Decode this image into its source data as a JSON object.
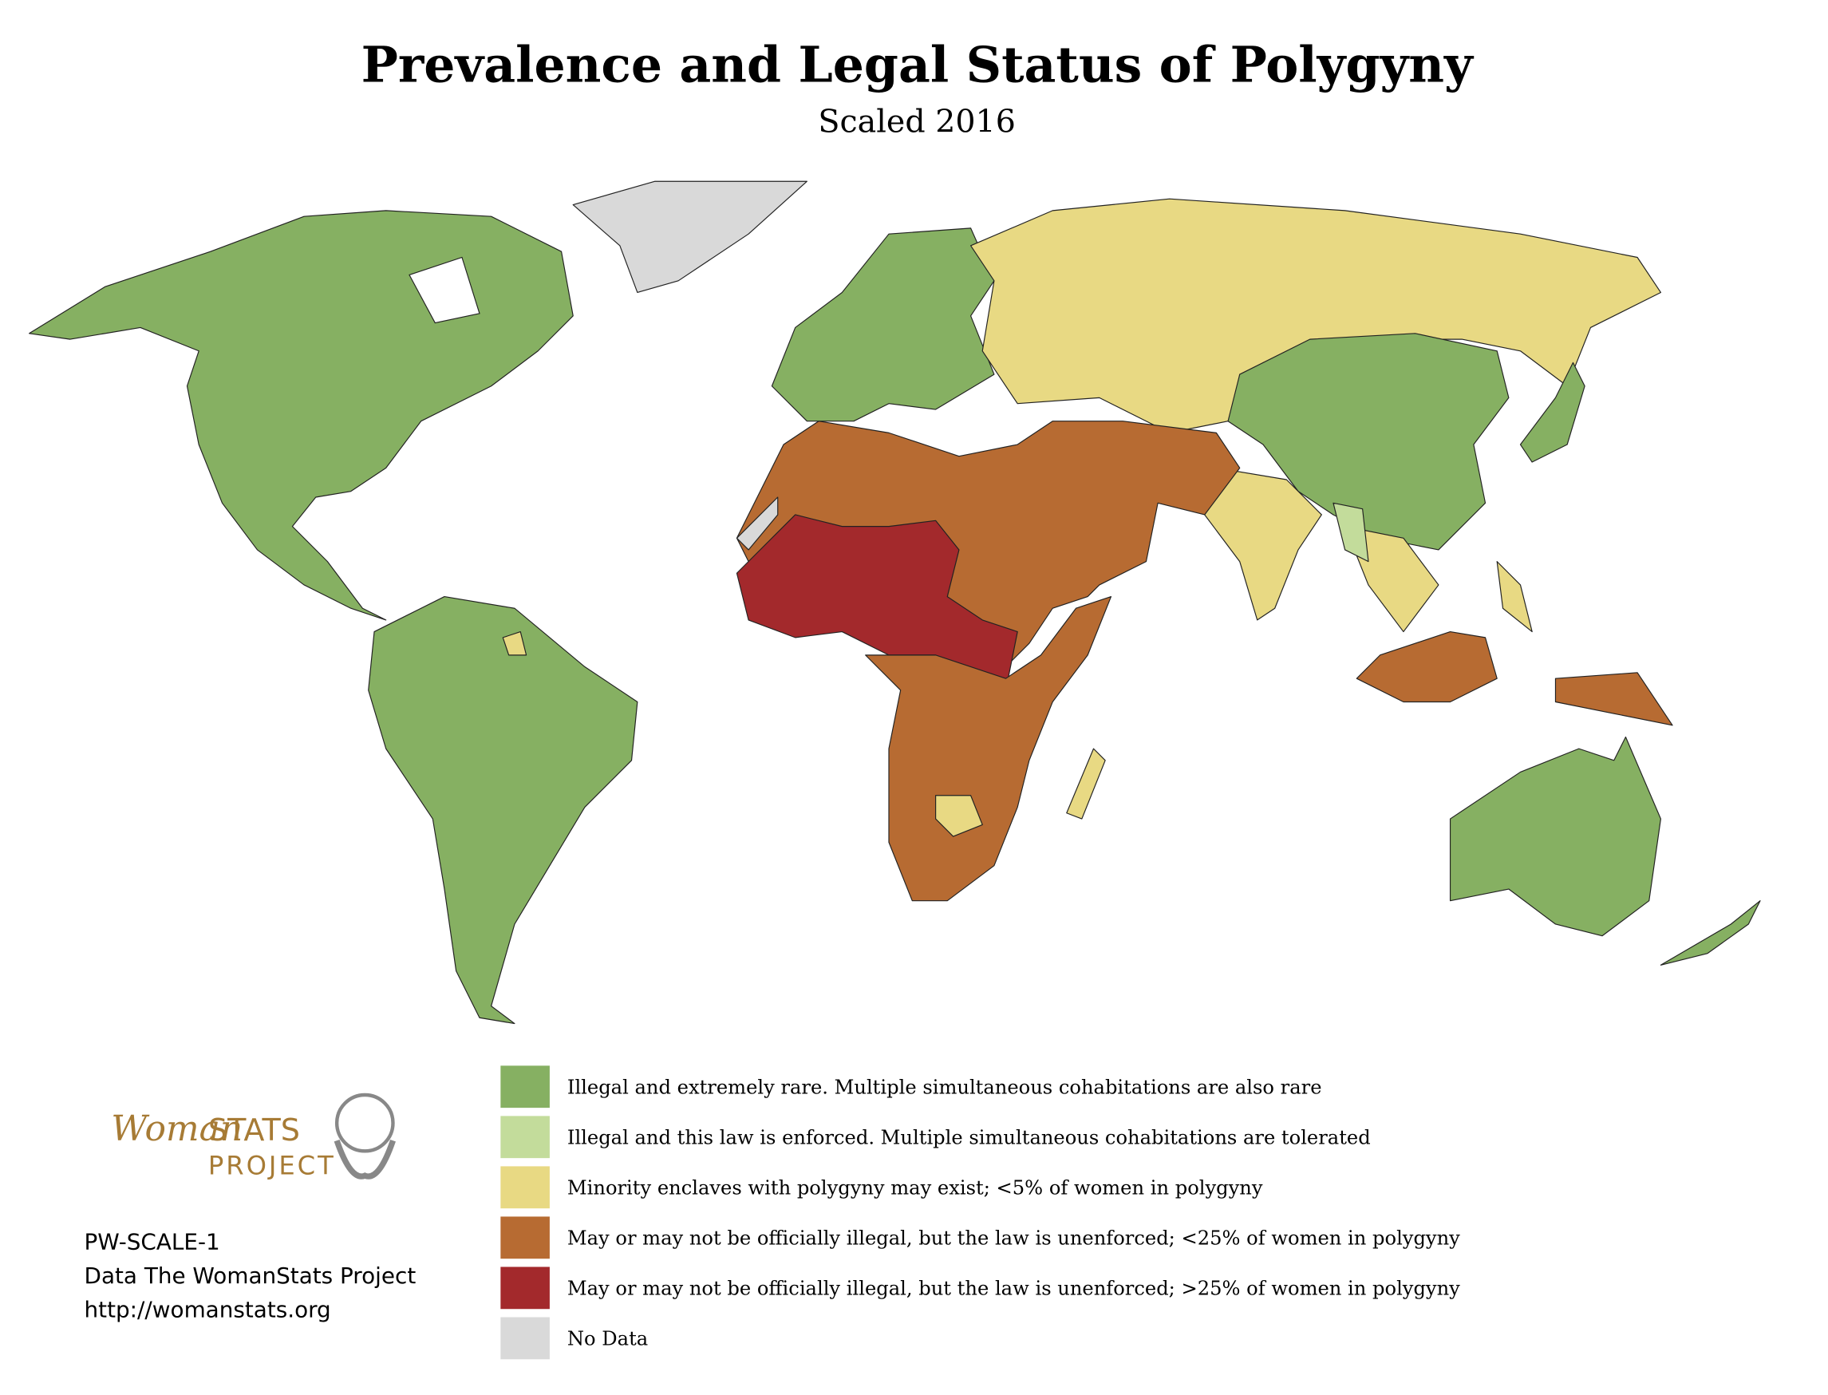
{
  "title": "Prevalence and Legal Status of Polygyny",
  "subtitle": "Scaled 2016",
  "legend": [
    {
      "label": "Illegal and extremely rare. Multiple simultaneous cohabitations are also rare",
      "color": "#86b062"
    },
    {
      "label": "Illegal and this law is enforced. Multiple simultaneous cohabitations are tolerated",
      "color": "#c3dc9b"
    },
    {
      "label": "Minority enclaves with polygyny may exist; <5% of women in polygyny",
      "color": "#e8d983"
    },
    {
      "label": "May or may not be officially illegal, but the law is unenforced; <25% of women in polygyny",
      "color": "#b76b32"
    },
    {
      "label": "May or may not be officially illegal, but the law is unenforced; >25% of women in polygyny",
      "color": "#a3292c"
    },
    {
      "label": "No Data",
      "color": "#d9d9d9"
    }
  ],
  "logo": {
    "script": "Woman",
    "caps": "STATS",
    "project": "PROJECT"
  },
  "footer": [
    "PW-SCALE-1",
    "Data The WomanStats Project",
    "http://womanstats.org"
  ]
}
